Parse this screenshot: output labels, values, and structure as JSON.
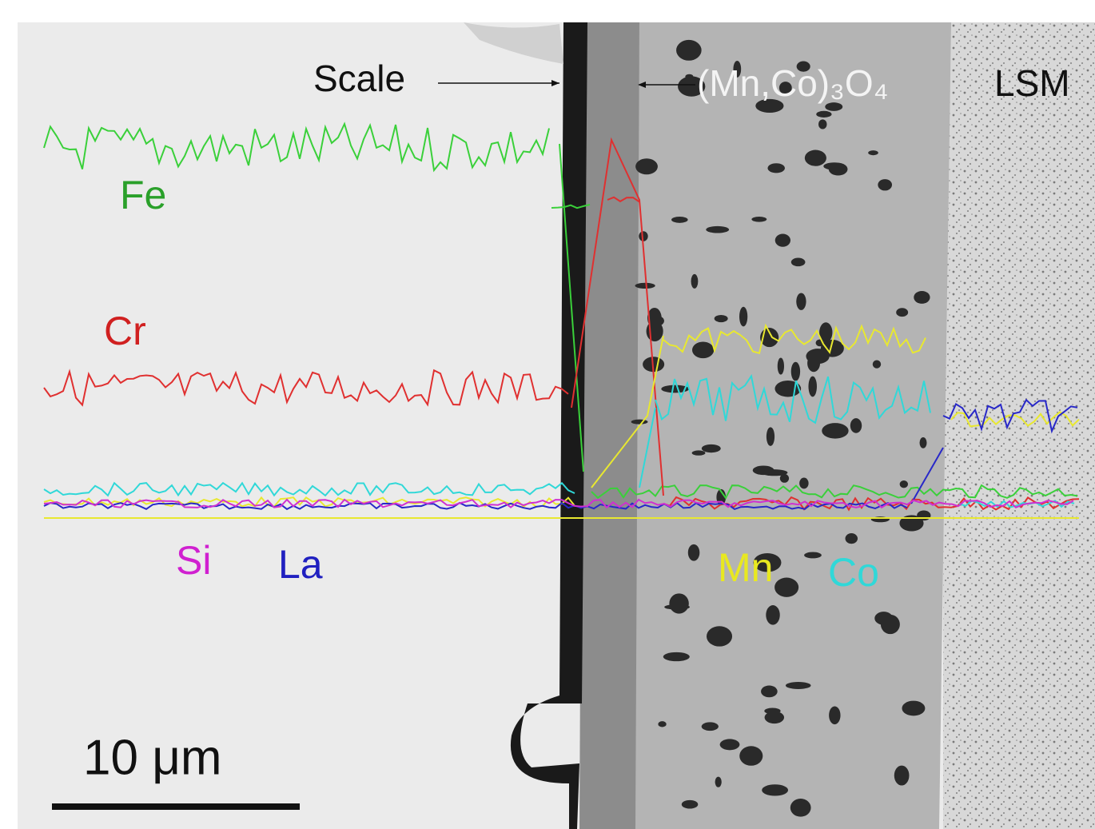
{
  "labels": {
    "scale": "Scale",
    "coating": "(Mn,Co)₃O₄",
    "lsm": "LSM",
    "fe": "Fe",
    "cr": "Cr",
    "si": "Si",
    "la": "La",
    "mn": "Mn",
    "co": "Co",
    "scale_bar": "10 μm"
  }
}
